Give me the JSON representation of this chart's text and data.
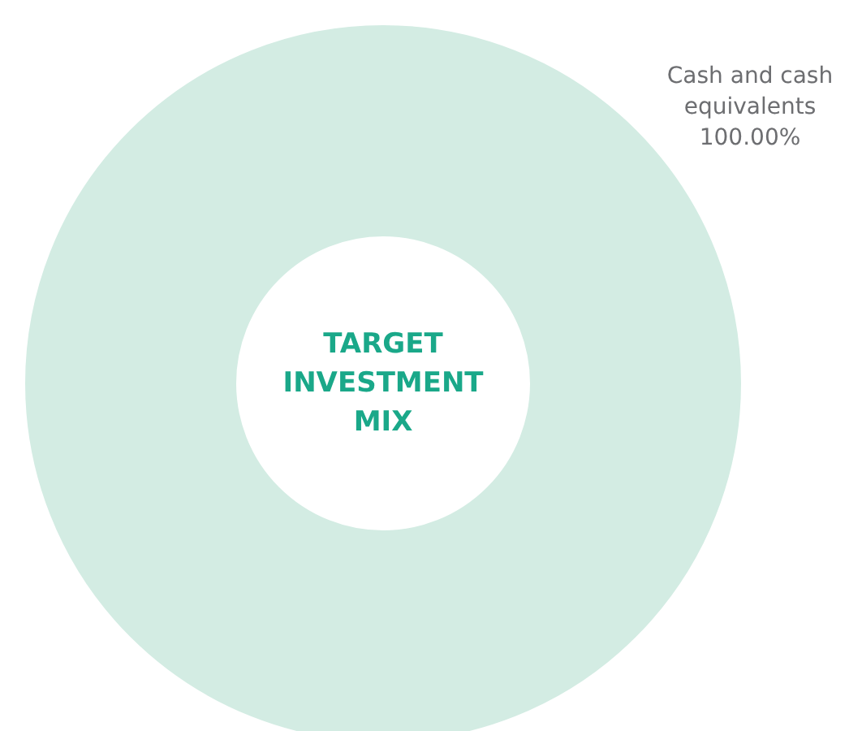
{
  "chart_data": {
    "type": "donut",
    "title": "TARGET INVESTMENT MIX",
    "categories": [
      "Cash and cash equivalents"
    ],
    "values": [
      100
    ],
    "colors": [
      "#d3ece3"
    ],
    "value_labels": [
      "100.00%"
    ]
  }
}
